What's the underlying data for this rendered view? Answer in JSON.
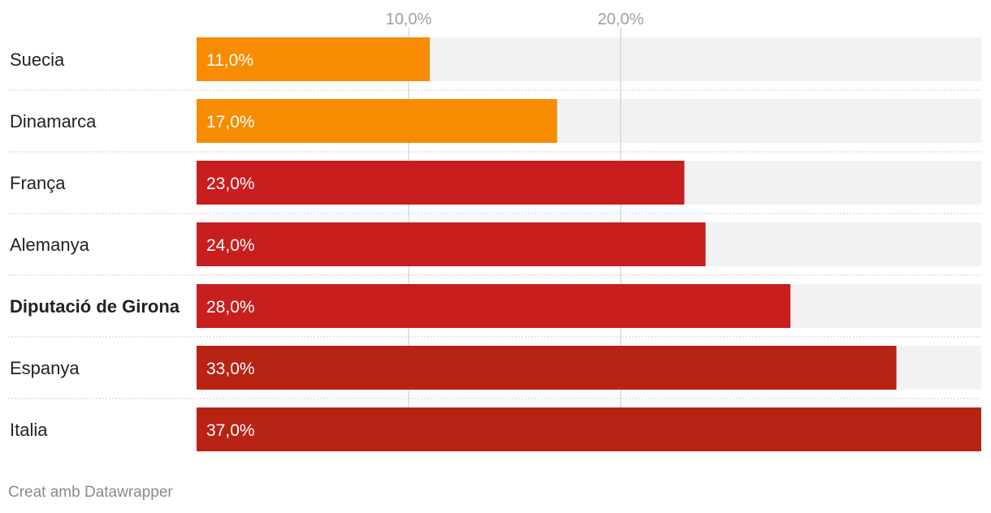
{
  "chart_data": {
    "type": "bar",
    "orientation": "horizontal",
    "categories": [
      "Suecia",
      "Dinamarca",
      "França",
      "Alemanya",
      "Diputació de Girona",
      "Espanya",
      "Italia"
    ],
    "values": [
      11.0,
      17.0,
      23.0,
      24.0,
      28.0,
      33.0,
      37.0
    ],
    "value_labels": [
      "11,0%",
      "17,0%",
      "23,0%",
      "24,0%",
      "28,0%",
      "33,0%",
      "37,0%"
    ],
    "highlight": "Diputació de Girona",
    "bar_colors": [
      "#f78c00",
      "#f78c00",
      "#c81e1e",
      "#c81e1e",
      "#c81e1e",
      "#b82314",
      "#b82314"
    ],
    "track_color": "#f2f2f2",
    "xlim": [
      0,
      37
    ],
    "x_ticks": [
      10,
      20
    ],
    "x_tick_labels": [
      "10,0%",
      "20,0%"
    ],
    "grid": true,
    "title": "",
    "xlabel": "",
    "ylabel": ""
  },
  "footer": {
    "credit": "Creat amb Datawrapper"
  }
}
